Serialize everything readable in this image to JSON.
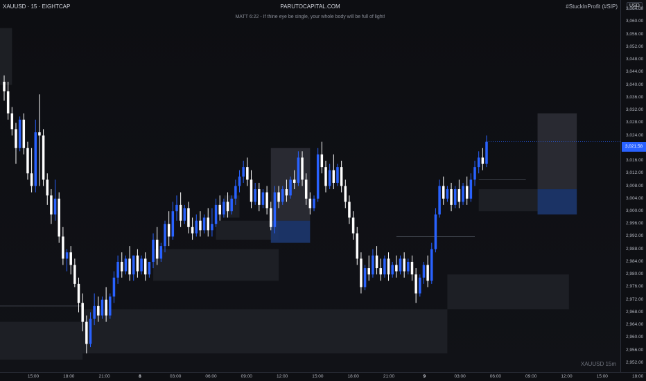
{
  "header": {
    "symbol": "XAUUSD · 15 · EIGHTCAP",
    "site": "PARUTOCAPITAL.COM",
    "verse": "MATT 6:22 - If thine eye be single, your whole body will be full of light!",
    "tag": "#StuckInProfit (#SIP)"
  },
  "watermark": "XAUUSD 15m",
  "price_axis": {
    "currency": "USD",
    "ticks": [
      "3,064.00",
      "3,060.00",
      "3,056.00",
      "3,052.00",
      "3,048.00",
      "3,044.00",
      "3,040.00",
      "3,036.00",
      "3,032.00",
      "3,028.00",
      "3,024.00",
      "3,020.00",
      "3,016.00",
      "3,012.00",
      "3,008.00",
      "3,004.00",
      "3,000.00",
      "2,996.00",
      "2,992.00",
      "2,988.00",
      "2,984.00",
      "2,980.00",
      "2,976.00",
      "2,972.00",
      "2,968.00",
      "2,964.00",
      "2,960.00",
      "2,956.00",
      "2,952.00"
    ],
    "current_price": "3,021.58"
  },
  "time_axis": {
    "ticks": [
      {
        "label": "15:00",
        "bold": false
      },
      {
        "label": "18:00",
        "bold": false
      },
      {
        "label": "21:00",
        "bold": false
      },
      {
        "label": "8",
        "bold": true
      },
      {
        "label": "03:00",
        "bold": false
      },
      {
        "label": "06:00",
        "bold": false
      },
      {
        "label": "09:00",
        "bold": false
      },
      {
        "label": "12:00",
        "bold": false
      },
      {
        "label": "15:00",
        "bold": false
      },
      {
        "label": "18:00",
        "bold": false
      },
      {
        "label": "21:00",
        "bold": false
      },
      {
        "label": "9",
        "bold": true
      },
      {
        "label": "03:00",
        "bold": false
      },
      {
        "label": "06:00",
        "bold": false
      },
      {
        "label": "09:00",
        "bold": false
      },
      {
        "label": "12:00",
        "bold": false
      },
      {
        "label": "15:00",
        "bold": false
      },
      {
        "label": "18:00",
        "bold": false
      }
    ]
  },
  "colors": {
    "background": "#0e0f13",
    "candle_up": "#2962ff",
    "candle_down": "#ffffff",
    "zone": "#1f2127",
    "zone_highlight": "#1d3a73",
    "text": "#b2b5be"
  },
  "chart_data": {
    "type": "candlestick",
    "symbol": "XAUUSD",
    "interval": "15",
    "broker": "EIGHTCAP",
    "ylim": [
      2950,
      3066
    ],
    "candles": [
      {
        "o": 3041.0,
        "h": 3043.0,
        "c": 3038.0,
        "l": 3035.0
      },
      {
        "o": 3038.0,
        "h": 3041.0,
        "c": 3031.0,
        "l": 3029.0
      },
      {
        "o": 3031.0,
        "h": 3033.0,
        "c": 3026.0,
        "l": 3024.0
      },
      {
        "o": 3026.0,
        "h": 3028.0,
        "c": 3020.0,
        "l": 3015.0
      },
      {
        "o": 3020.0,
        "h": 3030.0,
        "c": 3029.0,
        "l": 3019.0
      },
      {
        "o": 3029.0,
        "h": 3031.0,
        "c": 3020.0,
        "l": 3018.0
      },
      {
        "o": 3020.0,
        "h": 3022.0,
        "c": 3012.0,
        "l": 3010.0
      },
      {
        "o": 3012.0,
        "h": 3020.0,
        "c": 3008.0,
        "l": 3006.0
      },
      {
        "o": 3008.0,
        "h": 3029.0,
        "c": 3025.0,
        "l": 3006.0
      },
      {
        "o": 3025.0,
        "h": 3037.0,
        "c": 3024.0,
        "l": 3008.0
      },
      {
        "o": 3024.0,
        "h": 3026.0,
        "c": 3010.0,
        "l": 3008.0
      },
      {
        "o": 3010.0,
        "h": 3012.0,
        "c": 3005.0,
        "l": 3002.0
      },
      {
        "o": 3005.0,
        "h": 3007.0,
        "c": 2999.0,
        "l": 2996.0
      },
      {
        "o": 2999.0,
        "h": 3010.0,
        "c": 3004.0,
        "l": 2997.0
      },
      {
        "o": 3004.0,
        "h": 3006.0,
        "c": 2992.0,
        "l": 2990.0
      },
      {
        "o": 2992.0,
        "h": 2995.0,
        "c": 2985.0,
        "l": 2983.0
      },
      {
        "o": 2985.0,
        "h": 2988.0,
        "c": 2987.0,
        "l": 2981.0
      },
      {
        "o": 2987.0,
        "h": 2989.0,
        "c": 2983.0,
        "l": 2980.0
      },
      {
        "o": 2983.0,
        "h": 2985.0,
        "c": 2977.0,
        "l": 2976.0
      },
      {
        "o": 2977.0,
        "h": 2979.0,
        "c": 2971.0,
        "l": 2968.0
      },
      {
        "o": 2971.0,
        "h": 2974.0,
        "c": 2965.0,
        "l": 2962.0
      },
      {
        "o": 2965.0,
        "h": 2967.0,
        "c": 2958.0,
        "l": 2955.0
      },
      {
        "o": 2958.0,
        "h": 2968.0,
        "c": 2966.0,
        "l": 2957.0
      },
      {
        "o": 2966.0,
        "h": 2974.0,
        "c": 2970.0,
        "l": 2964.0
      },
      {
        "o": 2970.0,
        "h": 2973.0,
        "c": 2967.0,
        "l": 2965.0
      },
      {
        "o": 2967.0,
        "h": 2973.0,
        "c": 2972.0,
        "l": 2966.0
      },
      {
        "o": 2972.0,
        "h": 2976.0,
        "c": 2967.0,
        "l": 2965.0
      },
      {
        "o": 2967.0,
        "h": 2974.0,
        "c": 2973.0,
        "l": 2966.0
      },
      {
        "o": 2973.0,
        "h": 2981.0,
        "c": 2979.0,
        "l": 2971.0
      },
      {
        "o": 2979.0,
        "h": 2986.0,
        "c": 2984.0,
        "l": 2977.0
      },
      {
        "o": 2984.0,
        "h": 2987.0,
        "c": 2981.0,
        "l": 2979.0
      },
      {
        "o": 2981.0,
        "h": 2986.0,
        "c": 2985.0,
        "l": 2980.0
      },
      {
        "o": 2985.0,
        "h": 2989.0,
        "c": 2980.0,
        "l": 2978.0
      },
      {
        "o": 2980.0,
        "h": 2986.0,
        "c": 2986.0,
        "l": 2978.0
      },
      {
        "o": 2986.0,
        "h": 2988.0,
        "c": 2981.0,
        "l": 2979.0
      },
      {
        "o": 2981.0,
        "h": 2986.0,
        "c": 2985.0,
        "l": 2980.0
      },
      {
        "o": 2985.0,
        "h": 2987.0,
        "c": 2980.0,
        "l": 2978.0
      },
      {
        "o": 2980.0,
        "h": 2984.0,
        "c": 2984.0,
        "l": 2979.0
      },
      {
        "o": 2984.0,
        "h": 2993.0,
        "c": 2991.0,
        "l": 2982.0
      },
      {
        "o": 2991.0,
        "h": 2995.0,
        "c": 2985.0,
        "l": 2983.0
      },
      {
        "o": 2985.0,
        "h": 2990.0,
        "c": 2989.0,
        "l": 2984.0
      },
      {
        "o": 2989.0,
        "h": 2997.0,
        "c": 2996.0,
        "l": 2987.0
      },
      {
        "o": 2996.0,
        "h": 3000.0,
        "c": 2992.0,
        "l": 2989.0
      },
      {
        "o": 2992.0,
        "h": 3003.0,
        "c": 3000.0,
        "l": 2991.0
      },
      {
        "o": 3000.0,
        "h": 3005.0,
        "c": 3002.0,
        "l": 2997.0
      },
      {
        "o": 3002.0,
        "h": 3006.0,
        "c": 2997.0,
        "l": 2995.0
      },
      {
        "o": 2997.0,
        "h": 3002.0,
        "c": 3001.0,
        "l": 2996.0
      },
      {
        "o": 3001.0,
        "h": 3003.0,
        "c": 2995.0,
        "l": 2993.0
      },
      {
        "o": 2995.0,
        "h": 2998.0,
        "c": 2993.0,
        "l": 2991.0
      },
      {
        "o": 2993.0,
        "h": 2999.0,
        "c": 2997.0,
        "l": 2992.0
      },
      {
        "o": 2997.0,
        "h": 3000.0,
        "c": 2994.0,
        "l": 2992.0
      },
      {
        "o": 2994.0,
        "h": 2999.0,
        "c": 2998.0,
        "l": 2993.0
      },
      {
        "o": 2998.0,
        "h": 3001.0,
        "c": 2994.0,
        "l": 2992.0
      },
      {
        "o": 2994.0,
        "h": 3001.0,
        "c": 2996.0,
        "l": 2992.0
      },
      {
        "o": 2996.0,
        "h": 3004.0,
        "c": 3002.0,
        "l": 2995.0
      },
      {
        "o": 3002.0,
        "h": 3005.0,
        "c": 2999.0,
        "l": 2997.0
      },
      {
        "o": 2999.0,
        "h": 3004.0,
        "c": 3003.0,
        "l": 2998.0
      },
      {
        "o": 3003.0,
        "h": 3006.0,
        "c": 3000.0,
        "l": 2998.0
      },
      {
        "o": 3000.0,
        "h": 3005.0,
        "c": 3004.0,
        "l": 2999.0
      },
      {
        "o": 3004.0,
        "h": 3010.0,
        "c": 3008.0,
        "l": 3002.0
      },
      {
        "o": 3008.0,
        "h": 3013.0,
        "c": 3011.0,
        "l": 3006.0
      },
      {
        "o": 3011.0,
        "h": 3016.0,
        "c": 3014.0,
        "l": 3009.0
      },
      {
        "o": 3014.0,
        "h": 3017.0,
        "c": 3010.0,
        "l": 3008.0
      },
      {
        "o": 3010.0,
        "h": 3013.0,
        "c": 3003.0,
        "l": 3001.0
      },
      {
        "o": 3003.0,
        "h": 3009.0,
        "c": 3007.0,
        "l": 3002.0
      },
      {
        "o": 3007.0,
        "h": 3009.0,
        "c": 3002.0,
        "l": 3000.0
      },
      {
        "o": 3002.0,
        "h": 3007.0,
        "c": 3006.0,
        "l": 3001.0
      },
      {
        "o": 3006.0,
        "h": 3008.0,
        "c": 3001.0,
        "l": 2999.0
      },
      {
        "o": 3001.0,
        "h": 3003.0,
        "c": 2995.0,
        "l": 2994.0
      },
      {
        "o": 2995.0,
        "h": 3008.0,
        "c": 3006.0,
        "l": 2993.0
      },
      {
        "o": 3006.0,
        "h": 3008.0,
        "c": 3003.0,
        "l": 3001.0
      },
      {
        "o": 3003.0,
        "h": 3008.0,
        "c": 3007.0,
        "l": 3002.0
      },
      {
        "o": 3007.0,
        "h": 3010.0,
        "c": 3005.0,
        "l": 3003.0
      },
      {
        "o": 3005.0,
        "h": 3011.0,
        "c": 3010.0,
        "l": 3004.0
      },
      {
        "o": 3010.0,
        "h": 3013.0,
        "c": 3009.0,
        "l": 3007.0
      },
      {
        "o": 3009.0,
        "h": 3019.0,
        "c": 3017.0,
        "l": 3008.0
      },
      {
        "o": 3017.0,
        "h": 3019.0,
        "c": 3010.0,
        "l": 3008.0
      },
      {
        "o": 3010.0,
        "h": 3012.0,
        "c": 3004.0,
        "l": 3002.0
      },
      {
        "o": 3004.0,
        "h": 3006.0,
        "c": 3001.0,
        "l": 2999.0
      },
      {
        "o": 3001.0,
        "h": 3005.0,
        "c": 3004.0,
        "l": 3000.0
      },
      {
        "o": 3004.0,
        "h": 3020.0,
        "c": 3018.0,
        "l": 3003.0
      },
      {
        "o": 3018.0,
        "h": 3022.0,
        "c": 3014.0,
        "l": 3012.0
      },
      {
        "o": 3014.0,
        "h": 3016.0,
        "c": 3008.0,
        "l": 3006.0
      },
      {
        "o": 3008.0,
        "h": 3015.0,
        "c": 3013.0,
        "l": 3007.0
      },
      {
        "o": 3013.0,
        "h": 3018.0,
        "c": 3009.0,
        "l": 3007.0
      },
      {
        "o": 3009.0,
        "h": 3015.0,
        "c": 3014.0,
        "l": 3008.0
      },
      {
        "o": 3014.0,
        "h": 3016.0,
        "c": 3008.0,
        "l": 3006.0
      },
      {
        "o": 3008.0,
        "h": 3010.0,
        "c": 3003.0,
        "l": 3001.0
      },
      {
        "o": 3003.0,
        "h": 3005.0,
        "c": 2998.0,
        "l": 2996.0
      },
      {
        "o": 2998.0,
        "h": 3000.0,
        "c": 2993.0,
        "l": 2991.0
      },
      {
        "o": 2993.0,
        "h": 2995.0,
        "c": 2985.0,
        "l": 2983.0
      },
      {
        "o": 2985.0,
        "h": 2987.0,
        "c": 2976.0,
        "l": 2974.0
      },
      {
        "o": 2976.0,
        "h": 2983.0,
        "c": 2982.0,
        "l": 2975.0
      },
      {
        "o": 2982.0,
        "h": 2986.0,
        "c": 2980.0,
        "l": 2978.0
      },
      {
        "o": 2980.0,
        "h": 2988.0,
        "c": 2986.0,
        "l": 2979.0
      },
      {
        "o": 2986.0,
        "h": 2989.0,
        "c": 2982.0,
        "l": 2980.0
      },
      {
        "o": 2982.0,
        "h": 2985.0,
        "c": 2980.0,
        "l": 2978.0
      },
      {
        "o": 2980.0,
        "h": 2986.0,
        "c": 2985.0,
        "l": 2979.0
      },
      {
        "o": 2985.0,
        "h": 2987.0,
        "c": 2980.0,
        "l": 2978.0
      },
      {
        "o": 2980.0,
        "h": 2984.0,
        "c": 2983.0,
        "l": 2979.0
      },
      {
        "o": 2983.0,
        "h": 2986.0,
        "c": 2981.0,
        "l": 2979.0
      },
      {
        "o": 2981.0,
        "h": 2986.0,
        "c": 2985.0,
        "l": 2980.0
      },
      {
        "o": 2985.0,
        "h": 2987.0,
        "c": 2981.0,
        "l": 2979.0
      },
      {
        "o": 2981.0,
        "h": 2985.0,
        "c": 2984.0,
        "l": 2980.0
      },
      {
        "o": 2984.0,
        "h": 2986.0,
        "c": 2980.0,
        "l": 2978.0
      },
      {
        "o": 2980.0,
        "h": 2982.0,
        "c": 2974.0,
        "l": 2971.0
      },
      {
        "o": 2974.0,
        "h": 2980.0,
        "c": 2979.0,
        "l": 2973.0
      },
      {
        "o": 2979.0,
        "h": 2984.0,
        "c": 2983.0,
        "l": 2977.0
      },
      {
        "o": 2983.0,
        "h": 2986.0,
        "c": 2978.0,
        "l": 2976.0
      },
      {
        "o": 2978.0,
        "h": 2990.0,
        "c": 2988.0,
        "l": 2977.0
      },
      {
        "o": 2988.0,
        "h": 3001.0,
        "c": 2999.0,
        "l": 2987.0
      },
      {
        "o": 2999.0,
        "h": 3010.0,
        "c": 3008.0,
        "l": 2998.0
      },
      {
        "o": 3008.0,
        "h": 3011.0,
        "c": 3004.0,
        "l": 3002.0
      },
      {
        "o": 3004.0,
        "h": 3008.0,
        "c": 3007.0,
        "l": 3003.0
      },
      {
        "o": 3007.0,
        "h": 3009.0,
        "c": 3002.0,
        "l": 3000.0
      },
      {
        "o": 3002.0,
        "h": 3008.0,
        "c": 3007.0,
        "l": 3001.0
      },
      {
        "o": 3007.0,
        "h": 3010.0,
        "c": 3003.0,
        "l": 3001.0
      },
      {
        "o": 3003.0,
        "h": 3009.0,
        "c": 3008.0,
        "l": 3002.0
      },
      {
        "o": 3008.0,
        "h": 3011.0,
        "c": 3004.0,
        "l": 3002.0
      },
      {
        "o": 3004.0,
        "h": 3012.0,
        "c": 3010.0,
        "l": 3003.0
      },
      {
        "o": 3010.0,
        "h": 3016.0,
        "c": 3014.0,
        "l": 3008.0
      },
      {
        "o": 3014.0,
        "h": 3019.0,
        "c": 3017.0,
        "l": 3012.0
      },
      {
        "o": 3017.0,
        "h": 3020.0,
        "c": 3015.0,
        "l": 3013.0
      },
      {
        "o": 3015.0,
        "h": 3024.0,
        "c": 3022.0,
        "l": 3014.0
      }
    ],
    "zones": [
      {
        "kind": "zone",
        "x_from": 0.0,
        "x_to": 2.0,
        "y_top": 3058.0,
        "y_bottom": 3040.0
      },
      {
        "kind": "zone",
        "x_from": 0.0,
        "x_to": 20.0,
        "y_top": 2965.0,
        "y_bottom": 2953.0
      },
      {
        "kind": "zone",
        "x_from": 20.0,
        "x_to": 113.0,
        "y_top": 2969.0,
        "y_bottom": 2955.0
      },
      {
        "kind": "zone",
        "x_from": 38.0,
        "x_to": 70.0,
        "y_top": 2988.0,
        "y_bottom": 2978.0
      },
      {
        "kind": "zone",
        "x_from": 54.0,
        "x_to": 70.0,
        "y_top": 2997.0,
        "y_bottom": 2991.0
      },
      {
        "kind": "zone",
        "x_from": 56.0,
        "x_to": 60.0,
        "y_top": 3005.0,
        "y_bottom": 2998.0
      },
      {
        "kind": "zone_light",
        "x_from": 68.0,
        "x_to": 78.0,
        "y_top": 3020.0,
        "y_bottom": 2997.0
      },
      {
        "kind": "zone_blue",
        "x_from": 68.0,
        "x_to": 78.0,
        "y_top": 2997.0,
        "y_bottom": 2990.0
      },
      {
        "kind": "zone",
        "x_from": 113.0,
        "x_to": 144.0,
        "y_top": 2980.0,
        "y_bottom": 2969.0
      },
      {
        "kind": "zone",
        "x_from": 121.0,
        "x_to": 136.0,
        "y_top": 3007.0,
        "y_bottom": 3000.0
      },
      {
        "kind": "zone_light",
        "x_from": 136.0,
        "x_to": 146.0,
        "y_top": 3031.0,
        "y_bottom": 3007.0
      },
      {
        "kind": "zone_blue",
        "x_from": 136.0,
        "x_to": 146.0,
        "y_top": 3007.0,
        "y_bottom": 2999.0
      }
    ],
    "lines": [
      {
        "x_from": 0.0,
        "x_to": 20.0,
        "y": 2970.0
      },
      {
        "x_from": 100.0,
        "x_to": 120.0,
        "y": 2992.0
      },
      {
        "x_from": 121.0,
        "x_to": 133.0,
        "y": 3010.0
      }
    ],
    "x_ticks": [
      "15:00",
      "18:00",
      "21:00",
      "8",
      "03:00",
      "06:00",
      "09:00",
      "12:00",
      "15:00",
      "18:00",
      "21:00",
      "9",
      "03:00",
      "06:00",
      "09:00",
      "12:00",
      "15:00",
      "18:00"
    ]
  }
}
